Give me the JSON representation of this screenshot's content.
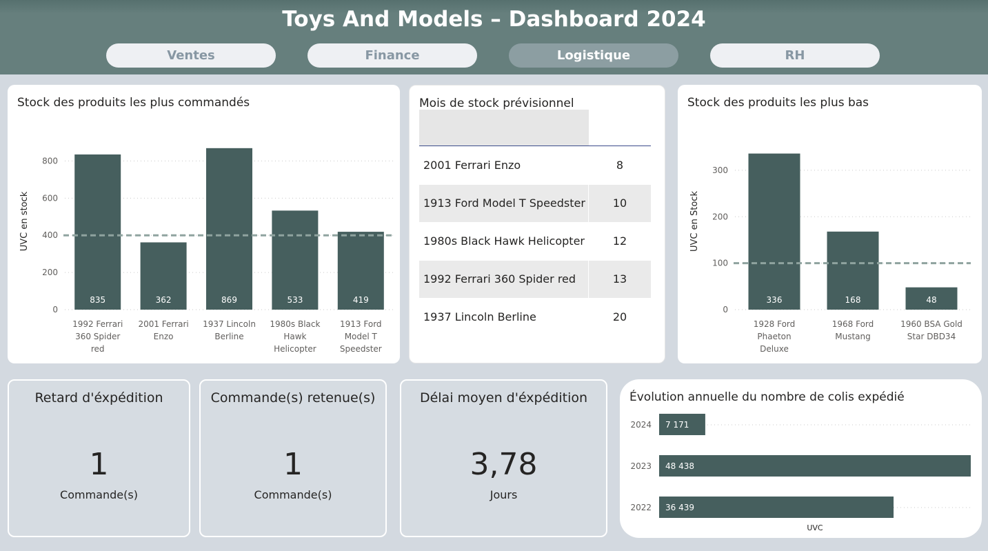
{
  "header": {
    "title": "Toys And Models – Dashboard 2024",
    "tabs": [
      {
        "label": "Ventes",
        "active": false
      },
      {
        "label": "Finance",
        "active": false
      },
      {
        "label": "Logistique",
        "active": true
      },
      {
        "label": "RH",
        "active": false
      }
    ]
  },
  "colors": {
    "bar": "#465f5e",
    "header": "#667f7d",
    "active_tab": "#8c9ea2",
    "reference_line": "#8fa39f",
    "background": "#d3d9e0"
  },
  "chart_data": [
    {
      "type": "bar",
      "title": "Stock des produits les plus commandés",
      "ylabel": "UVC en stock",
      "xlabel": "",
      "categories": [
        "1992 Ferrari 360 Spider red",
        "2001 Ferrari Enzo",
        "1937 Lincoln Berline",
        "1980s Black Hawk Helicopter",
        "1913 Ford Model T Speedster"
      ],
      "values": [
        835,
        362,
        869,
        533,
        419
      ],
      "ylim": [
        0,
        950
      ],
      "yticks": [
        0,
        200,
        400,
        600,
        800
      ],
      "reference_line": 400,
      "grid": true,
      "legend": "none"
    },
    {
      "type": "bar",
      "title": "Stock des produits les plus bas",
      "ylabel": "UVC en Stock",
      "xlabel": "",
      "categories": [
        "1928 Ford Phaeton Deluxe",
        "1968 Ford Mustang",
        "1960 BSA Gold Star DBD34"
      ],
      "values": [
        336,
        168,
        48
      ],
      "ylim": [
        0,
        380
      ],
      "yticks": [
        0,
        100,
        200,
        300
      ],
      "reference_line": 100,
      "grid": true,
      "legend": "none"
    },
    {
      "type": "bar",
      "orientation": "horizontal",
      "title": "Évolution annuelle du nombre de colis expédié",
      "xlabel": "UVC",
      "ylabel": "",
      "categories": [
        "2024",
        "2023",
        "2022"
      ],
      "values": [
        7171,
        48438,
        36439
      ],
      "value_labels": [
        "7 171",
        "48 438",
        "36 439"
      ],
      "xlim": [
        0,
        48438
      ],
      "grid": true,
      "legend": "none"
    },
    {
      "type": "table",
      "title": "Mois de stock prévisionnel",
      "rows": [
        {
          "name": "2001 Ferrari Enzo",
          "value": "8"
        },
        {
          "name": "1913 Ford Model T Speedster",
          "value": "10"
        },
        {
          "name": "1980s Black Hawk Helicopter",
          "value": "12"
        },
        {
          "name": "1992 Ferrari 360 Spider red",
          "value": "13"
        },
        {
          "name": "1937 Lincoln Berline",
          "value": "20"
        }
      ]
    }
  ],
  "kpis": [
    {
      "title": "Retard d'éxpédition",
      "value": "1",
      "unit": "Commande(s)"
    },
    {
      "title": "Commande(s) retenue(s)",
      "value": "1",
      "unit": "Commande(s)"
    },
    {
      "title": "Délai moyen d'éxpédition",
      "value": "3,78",
      "unit": "Jours"
    }
  ]
}
